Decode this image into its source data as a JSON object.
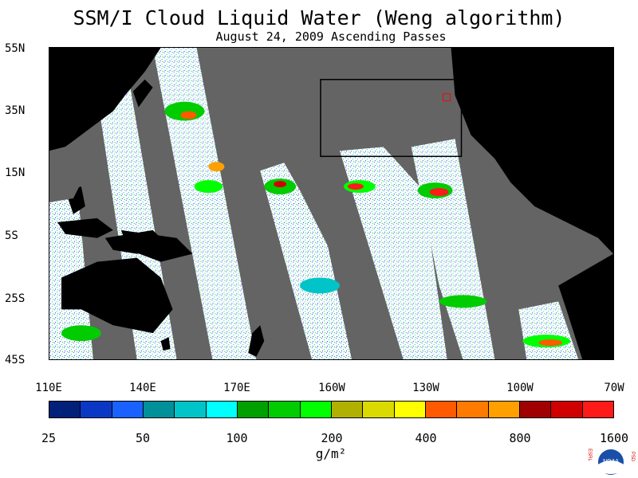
{
  "title": "SSM/I Cloud Liquid Water (Weng algorithm)",
  "subtitle": "August 24, 2009  Ascending Passes",
  "lat_labels": [
    "55N",
    "35N",
    "15N",
    "5S",
    "25S",
    "45S"
  ],
  "lon_labels": [
    "110E",
    "140E",
    "170E",
    "160W",
    "130W",
    "100W",
    "70W"
  ],
  "colorbar": {
    "colors": [
      "#00207a",
      "#0a38c4",
      "#1a62ff",
      "#00909a",
      "#00c4c8",
      "#00ffff",
      "#00a000",
      "#00cc00",
      "#00ff00",
      "#b0b000",
      "#dada00",
      "#ffff00",
      "#ff5a00",
      "#ff7a00",
      "#ffa000",
      "#a00000",
      "#d00000",
      "#ff1a1a"
    ],
    "tick_labels": [
      "25",
      "50",
      "100",
      "200",
      "400",
      "800",
      "1600"
    ]
  },
  "units": "g/m²",
  "logo": {
    "left_text": "ESRL",
    "right_text": "PSD",
    "center_text": "NOAA"
  }
}
